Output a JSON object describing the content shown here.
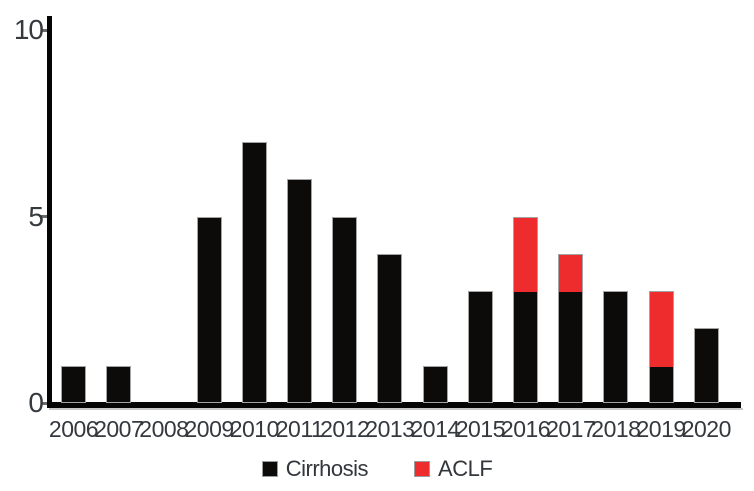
{
  "chart_data": {
    "type": "bar",
    "stacked": true,
    "categories": [
      "2006",
      "2007",
      "2008",
      "2009",
      "2010",
      "2011",
      "2012",
      "2013",
      "2014",
      "2015",
      "2016",
      "2017",
      "2018",
      "2019",
      "2020"
    ],
    "series": [
      {
        "name": "Cirrhosis",
        "color": "#0d0b0a",
        "values": [
          1,
          1,
          0,
          5,
          7,
          6,
          5,
          4,
          1,
          3,
          3,
          3,
          3,
          1,
          2
        ]
      },
      {
        "name": "ACLF",
        "color": "#ee2c2d",
        "values": [
          0,
          0,
          0,
          0,
          0,
          0,
          0,
          0,
          0,
          0,
          2,
          1,
          0,
          2,
          0
        ]
      }
    ],
    "title": "",
    "xlabel": "",
    "ylabel": "",
    "ylim": [
      0,
      10
    ],
    "yticks": [
      0,
      5,
      10
    ],
    "grid": false,
    "legend_position": "bottom"
  },
  "colors": {
    "axis": "#050505",
    "tick_text": "#35393e",
    "cirrhosis": "#0d0b0a",
    "aclf": "#ee2c2d"
  }
}
